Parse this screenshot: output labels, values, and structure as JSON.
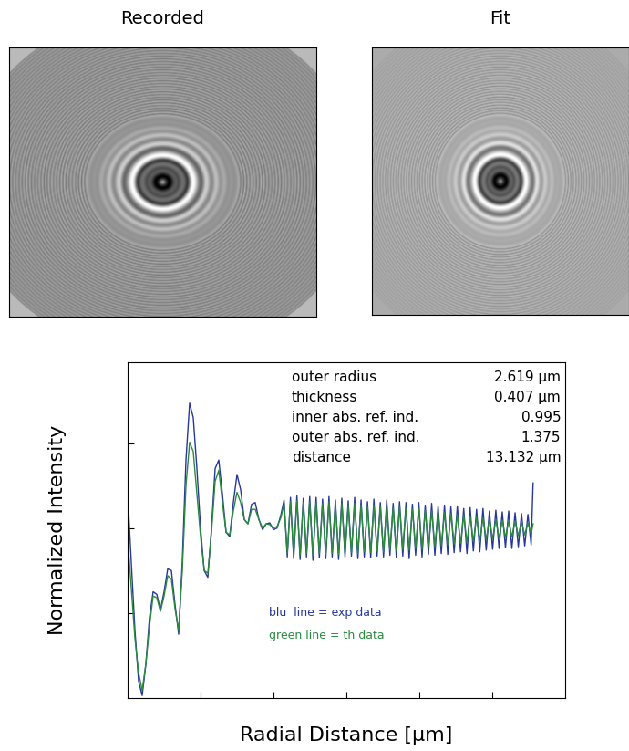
{
  "images": [
    {
      "title": "Recorded",
      "series": 0
    },
    {
      "title": "Fit",
      "series": 1
    }
  ],
  "chart_data": {
    "type": "line",
    "xlabel": "Radial Distance [μm]",
    "ylabel": "Normalized Intensity",
    "xlim": [
      0,
      6
    ],
    "ylim": [
      0,
      3.95
    ],
    "xticks": [
      1,
      2,
      3,
      4,
      5
    ],
    "yticks": [
      1,
      2,
      3
    ],
    "tick_labels": false,
    "parameters": [
      {
        "label": "outer radius",
        "value": 2.619,
        "unit": "μm"
      },
      {
        "label": "thickness",
        "value": 0.407,
        "unit": "μm"
      },
      {
        "label": "inner abs. ref. ind.",
        "value": 0.995
      },
      {
        "label": "outer abs. ref. ind.",
        "value": 1.375
      },
      {
        "label": "distance",
        "value": 13.132,
        "unit": "μm"
      }
    ],
    "x": [
      0.0,
      0.05,
      0.1,
      0.15,
      0.2,
      0.25,
      0.3,
      0.35,
      0.4,
      0.45,
      0.5,
      0.55,
      0.6,
      0.65,
      0.7,
      0.75,
      0.8,
      0.85,
      0.9,
      0.95,
      1.0,
      1.05,
      1.1,
      1.15,
      1.2,
      1.25,
      1.3,
      1.35,
      1.4,
      1.45,
      1.5,
      1.55,
      1.6,
      1.65,
      1.7,
      1.75,
      1.8,
      1.85,
      1.9,
      1.95,
      2.0,
      2.05,
      2.1,
      2.145,
      2.189,
      2.233,
      2.277,
      2.321,
      2.365,
      2.409,
      2.453,
      2.497,
      2.541,
      2.585,
      2.629,
      2.673,
      2.717,
      2.761,
      2.805,
      2.849,
      2.893,
      2.937,
      2.981,
      3.025,
      3.069,
      3.113,
      3.157,
      3.201,
      3.245,
      3.289,
      3.333,
      3.377,
      3.421,
      3.465,
      3.509,
      3.553,
      3.597,
      3.641,
      3.685,
      3.729,
      3.773,
      3.817,
      3.861,
      3.905,
      3.949,
      3.993,
      4.037,
      4.081,
      4.125,
      4.169,
      4.213,
      4.257,
      4.301,
      4.345,
      4.389,
      4.433,
      4.477,
      4.521,
      4.565,
      4.609,
      4.653,
      4.697,
      4.741,
      4.785,
      4.829,
      4.873,
      4.917,
      4.961,
      5.005,
      5.049,
      5.093,
      5.137,
      5.181,
      5.225,
      5.269,
      5.313,
      5.357,
      5.401,
      5.445,
      5.489,
      5.533,
      5.56
    ],
    "series": [
      {
        "name": "blu  line = exp data",
        "color": "#27379a",
        "values": [
          2.42,
          1.6,
          0.8,
          0.2,
          0.03,
          0.4,
          0.95,
          1.25,
          1.22,
          1.04,
          1.25,
          1.52,
          1.5,
          1.1,
          0.75,
          1.6,
          2.8,
          3.47,
          3.3,
          2.7,
          2.0,
          1.5,
          1.42,
          2.0,
          2.7,
          2.8,
          2.4,
          1.95,
          1.9,
          2.3,
          2.63,
          2.45,
          2.1,
          2.05,
          2.28,
          2.3,
          2.1,
          1.98,
          2.05,
          2.06,
          1.98,
          2.0,
          2.15,
          2.33,
          1.66,
          2.36,
          1.64,
          2.38,
          1.63,
          2.35,
          1.66,
          2.37,
          1.62,
          2.36,
          1.65,
          2.34,
          1.64,
          2.37,
          1.66,
          2.33,
          1.63,
          2.35,
          1.66,
          2.32,
          1.67,
          2.36,
          1.64,
          2.33,
          1.66,
          2.31,
          1.65,
          2.34,
          1.67,
          2.3,
          1.66,
          2.33,
          1.68,
          2.29,
          1.65,
          2.31,
          1.67,
          2.3,
          1.64,
          2.28,
          1.68,
          2.3,
          1.66,
          2.27,
          1.69,
          2.29,
          1.68,
          2.26,
          1.7,
          2.27,
          1.69,
          2.25,
          1.71,
          2.26,
          1.72,
          2.23,
          1.7,
          2.24,
          1.73,
          2.22,
          1.72,
          2.23,
          1.74,
          2.2,
          1.75,
          2.21,
          1.76,
          2.19,
          1.77,
          2.2,
          1.76,
          2.18,
          1.78,
          2.17,
          1.79,
          2.16,
          1.8,
          2.53
        ]
      },
      {
        "name": "green line = th data",
        "color": "#2a8a3e",
        "values": [
          1.88,
          1.3,
          0.7,
          0.3,
          0.09,
          0.4,
          0.85,
          1.2,
          1.18,
          1.02,
          1.2,
          1.44,
          1.4,
          1.05,
          0.8,
          1.5,
          2.5,
          3.01,
          2.9,
          2.4,
          1.9,
          1.5,
          1.47,
          1.95,
          2.55,
          2.68,
          2.3,
          1.95,
          1.92,
          2.2,
          2.42,
          2.3,
          2.1,
          2.05,
          2.22,
          2.22,
          2.1,
          2.0,
          2.05,
          2.04,
          2.0,
          2.02,
          2.12,
          2.28,
          1.7,
          2.31,
          1.68,
          2.32,
          1.68,
          2.3,
          1.7,
          2.31,
          1.68,
          2.3,
          1.7,
          2.29,
          1.69,
          2.31,
          1.7,
          2.28,
          1.69,
          2.29,
          1.71,
          2.27,
          1.71,
          2.29,
          1.7,
          2.27,
          1.72,
          2.26,
          1.71,
          2.27,
          1.73,
          2.25,
          1.72,
          2.26,
          1.74,
          2.24,
          1.73,
          2.25,
          1.75,
          2.23,
          1.74,
          2.22,
          1.76,
          2.23,
          1.75,
          2.21,
          1.77,
          2.2,
          1.78,
          2.19,
          1.79,
          2.18,
          1.8,
          2.17,
          1.81,
          2.16,
          1.82,
          2.15,
          1.83,
          2.14,
          1.84,
          2.13,
          1.85,
          2.12,
          1.86,
          2.11,
          1.87,
          2.1,
          1.88,
          2.09,
          1.89,
          2.08,
          1.9,
          2.08,
          1.91,
          2.07,
          1.92,
          2.06,
          1.93,
          2.05
        ]
      }
    ]
  }
}
